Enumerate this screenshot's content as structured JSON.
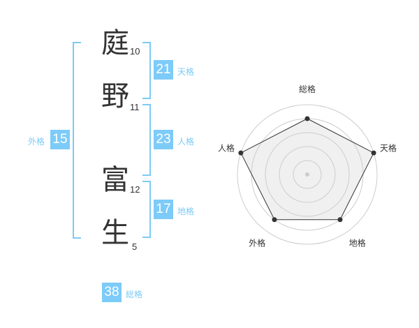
{
  "name": {
    "chars": [
      {
        "char": "庭",
        "strokes": "10"
      },
      {
        "char": "野",
        "strokes": "11"
      },
      {
        "char": "富",
        "strokes": "12"
      },
      {
        "char": "生",
        "strokes": "5"
      }
    ]
  },
  "fortunes": {
    "tenkaku": {
      "label": "天格",
      "value": "21"
    },
    "jinkaku": {
      "label": "人格",
      "value": "23"
    },
    "chikaku": {
      "label": "地格",
      "value": "17"
    },
    "gaikaku": {
      "label": "外格",
      "value": "15"
    },
    "soukaku": {
      "label": "総格",
      "value": "38"
    }
  },
  "colors": {
    "accent": "#7dcbf8",
    "radar_fill": "#f0f0f0",
    "radar_line": "#333333"
  },
  "chart_data": {
    "type": "radar",
    "axes": [
      "総格",
      "天格",
      "地格",
      "外格",
      "人格"
    ],
    "values": [
      4,
      5,
      4,
      4,
      5
    ],
    "rmax": 5,
    "rings": 5
  }
}
